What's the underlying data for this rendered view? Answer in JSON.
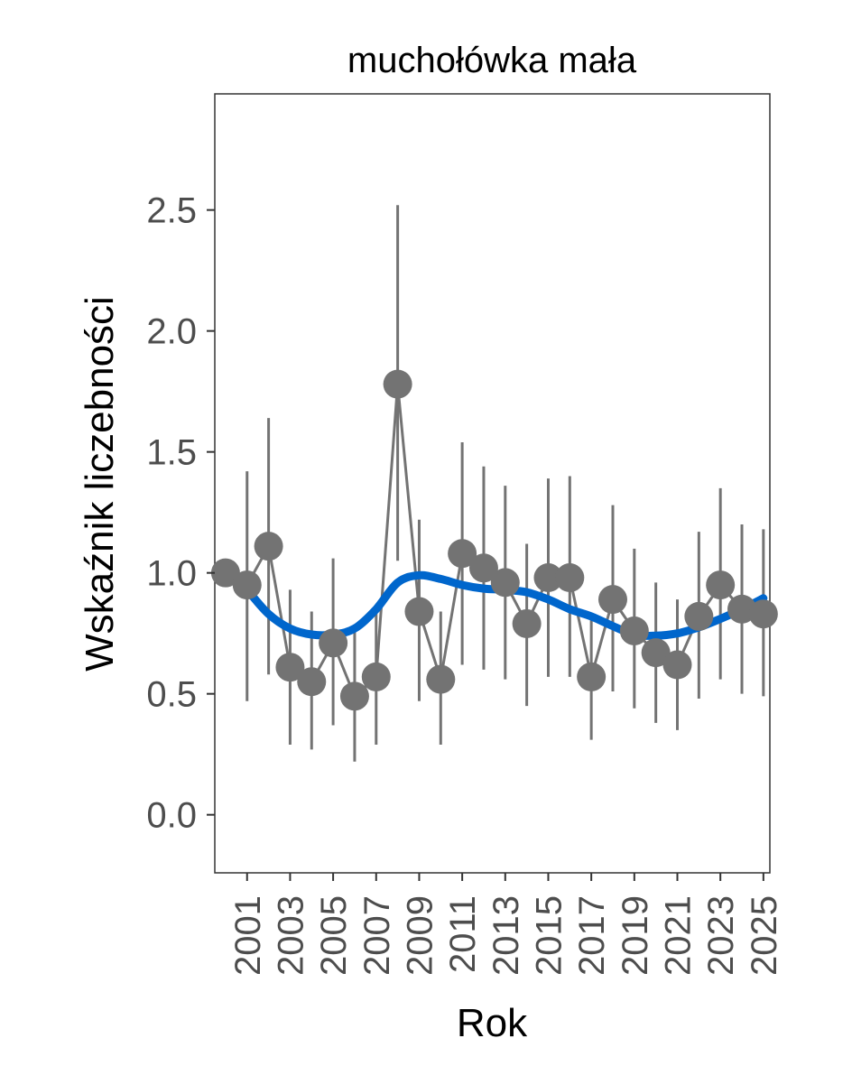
{
  "chart_data": {
    "type": "line",
    "title": "muchołówka mała",
    "xlabel": "Rok",
    "ylabel": "Wskaźnik liczebności",
    "xlim": [
      1999.5,
      2025.3
    ],
    "ylim": [
      -0.24,
      2.98
    ],
    "y_ticks": [
      {
        "value": 0.0,
        "label": "0.0"
      },
      {
        "value": 0.5,
        "label": "0.5"
      },
      {
        "value": 1.0,
        "label": "1.0"
      },
      {
        "value": 1.5,
        "label": "1.5"
      },
      {
        "value": 2.0,
        "label": "2.0"
      },
      {
        "value": 2.5,
        "label": "2.5"
      }
    ],
    "x_ticks": [
      {
        "value": 2001,
        "label": "2001"
      },
      {
        "value": 2003,
        "label": "2003"
      },
      {
        "value": 2005,
        "label": "2005"
      },
      {
        "value": 2007,
        "label": "2007"
      },
      {
        "value": 2009,
        "label": "2009"
      },
      {
        "value": 2011,
        "label": "2011"
      },
      {
        "value": 2013,
        "label": "2013"
      },
      {
        "value": 2015,
        "label": "2015"
      },
      {
        "value": 2017,
        "label": "2017"
      },
      {
        "value": 2019,
        "label": "2019"
      },
      {
        "value": 2021,
        "label": "2021"
      },
      {
        "value": 2023,
        "label": "2023"
      },
      {
        "value": 2025,
        "label": "2025"
      }
    ],
    "series": [
      {
        "name": "index",
        "color": "#737373",
        "points": [
          {
            "x": 2000,
            "y": 1.0,
            "lo": null,
            "hi": null
          },
          {
            "x": 2001,
            "y": 0.95,
            "lo": 0.47,
            "hi": 1.42
          },
          {
            "x": 2002,
            "y": 1.11,
            "lo": 0.58,
            "hi": 1.64
          },
          {
            "x": 2003,
            "y": 0.61,
            "lo": 0.29,
            "hi": 0.93
          },
          {
            "x": 2004,
            "y": 0.55,
            "lo": 0.27,
            "hi": 0.84
          },
          {
            "x": 2005,
            "y": 0.71,
            "lo": 0.37,
            "hi": 1.06
          },
          {
            "x": 2006,
            "y": 0.49,
            "lo": 0.22,
            "hi": 0.76
          },
          {
            "x": 2007,
            "y": 0.57,
            "lo": 0.29,
            "hi": 0.86
          },
          {
            "x": 2008,
            "y": 1.78,
            "lo": 1.05,
            "hi": 2.52
          },
          {
            "x": 2009,
            "y": 0.84,
            "lo": 0.47,
            "hi": 1.22
          },
          {
            "x": 2010,
            "y": 0.56,
            "lo": 0.29,
            "hi": 0.84
          },
          {
            "x": 2011,
            "y": 1.08,
            "lo": 0.62,
            "hi": 1.54
          },
          {
            "x": 2012,
            "y": 1.02,
            "lo": 0.6,
            "hi": 1.44
          },
          {
            "x": 2013,
            "y": 0.96,
            "lo": 0.56,
            "hi": 1.36
          },
          {
            "x": 2014,
            "y": 0.79,
            "lo": 0.45,
            "hi": 1.12
          },
          {
            "x": 2015,
            "y": 0.98,
            "lo": 0.57,
            "hi": 1.39
          },
          {
            "x": 2016,
            "y": 0.98,
            "lo": 0.57,
            "hi": 1.4
          },
          {
            "x": 2017,
            "y": 0.57,
            "lo": 0.31,
            "hi": 0.83
          },
          {
            "x": 2018,
            "y": 0.89,
            "lo": 0.51,
            "hi": 1.28
          },
          {
            "x": 2019,
            "y": 0.76,
            "lo": 0.44,
            "hi": 1.1
          },
          {
            "x": 2020,
            "y": 0.67,
            "lo": 0.38,
            "hi": 0.96
          },
          {
            "x": 2021,
            "y": 0.62,
            "lo": 0.35,
            "hi": 0.89
          },
          {
            "x": 2022,
            "y": 0.82,
            "lo": 0.48,
            "hi": 1.17
          },
          {
            "x": 2023,
            "y": 0.95,
            "lo": 0.56,
            "hi": 1.35
          },
          {
            "x": 2024,
            "y": 0.85,
            "lo": 0.5,
            "hi": 1.2
          },
          {
            "x": 2025,
            "y": 0.83,
            "lo": 0.49,
            "hi": 1.18
          }
        ]
      },
      {
        "name": "trend",
        "color": "#0066cc",
        "points": [
          {
            "x": 2000,
            "y": 1.03
          },
          {
            "x": 2001,
            "y": 0.93
          },
          {
            "x": 2002,
            "y": 0.83
          },
          {
            "x": 2003,
            "y": 0.77
          },
          {
            "x": 2004,
            "y": 0.745
          },
          {
            "x": 2005,
            "y": 0.745
          },
          {
            "x": 2006,
            "y": 0.77
          },
          {
            "x": 2007,
            "y": 0.85
          },
          {
            "x": 2008,
            "y": 0.96
          },
          {
            "x": 2009,
            "y": 0.99
          },
          {
            "x": 2010,
            "y": 0.975
          },
          {
            "x": 2011,
            "y": 0.95
          },
          {
            "x": 2012,
            "y": 0.935
          },
          {
            "x": 2013,
            "y": 0.93
          },
          {
            "x": 2014,
            "y": 0.92
          },
          {
            "x": 2015,
            "y": 0.89
          },
          {
            "x": 2016,
            "y": 0.85
          },
          {
            "x": 2017,
            "y": 0.82
          },
          {
            "x": 2018,
            "y": 0.78
          },
          {
            "x": 2019,
            "y": 0.745
          },
          {
            "x": 2020,
            "y": 0.74
          },
          {
            "x": 2021,
            "y": 0.75
          },
          {
            "x": 2022,
            "y": 0.775
          },
          {
            "x": 2023,
            "y": 0.81
          },
          {
            "x": 2024,
            "y": 0.85
          },
          {
            "x": 2025,
            "y": 0.895
          }
        ]
      }
    ]
  }
}
